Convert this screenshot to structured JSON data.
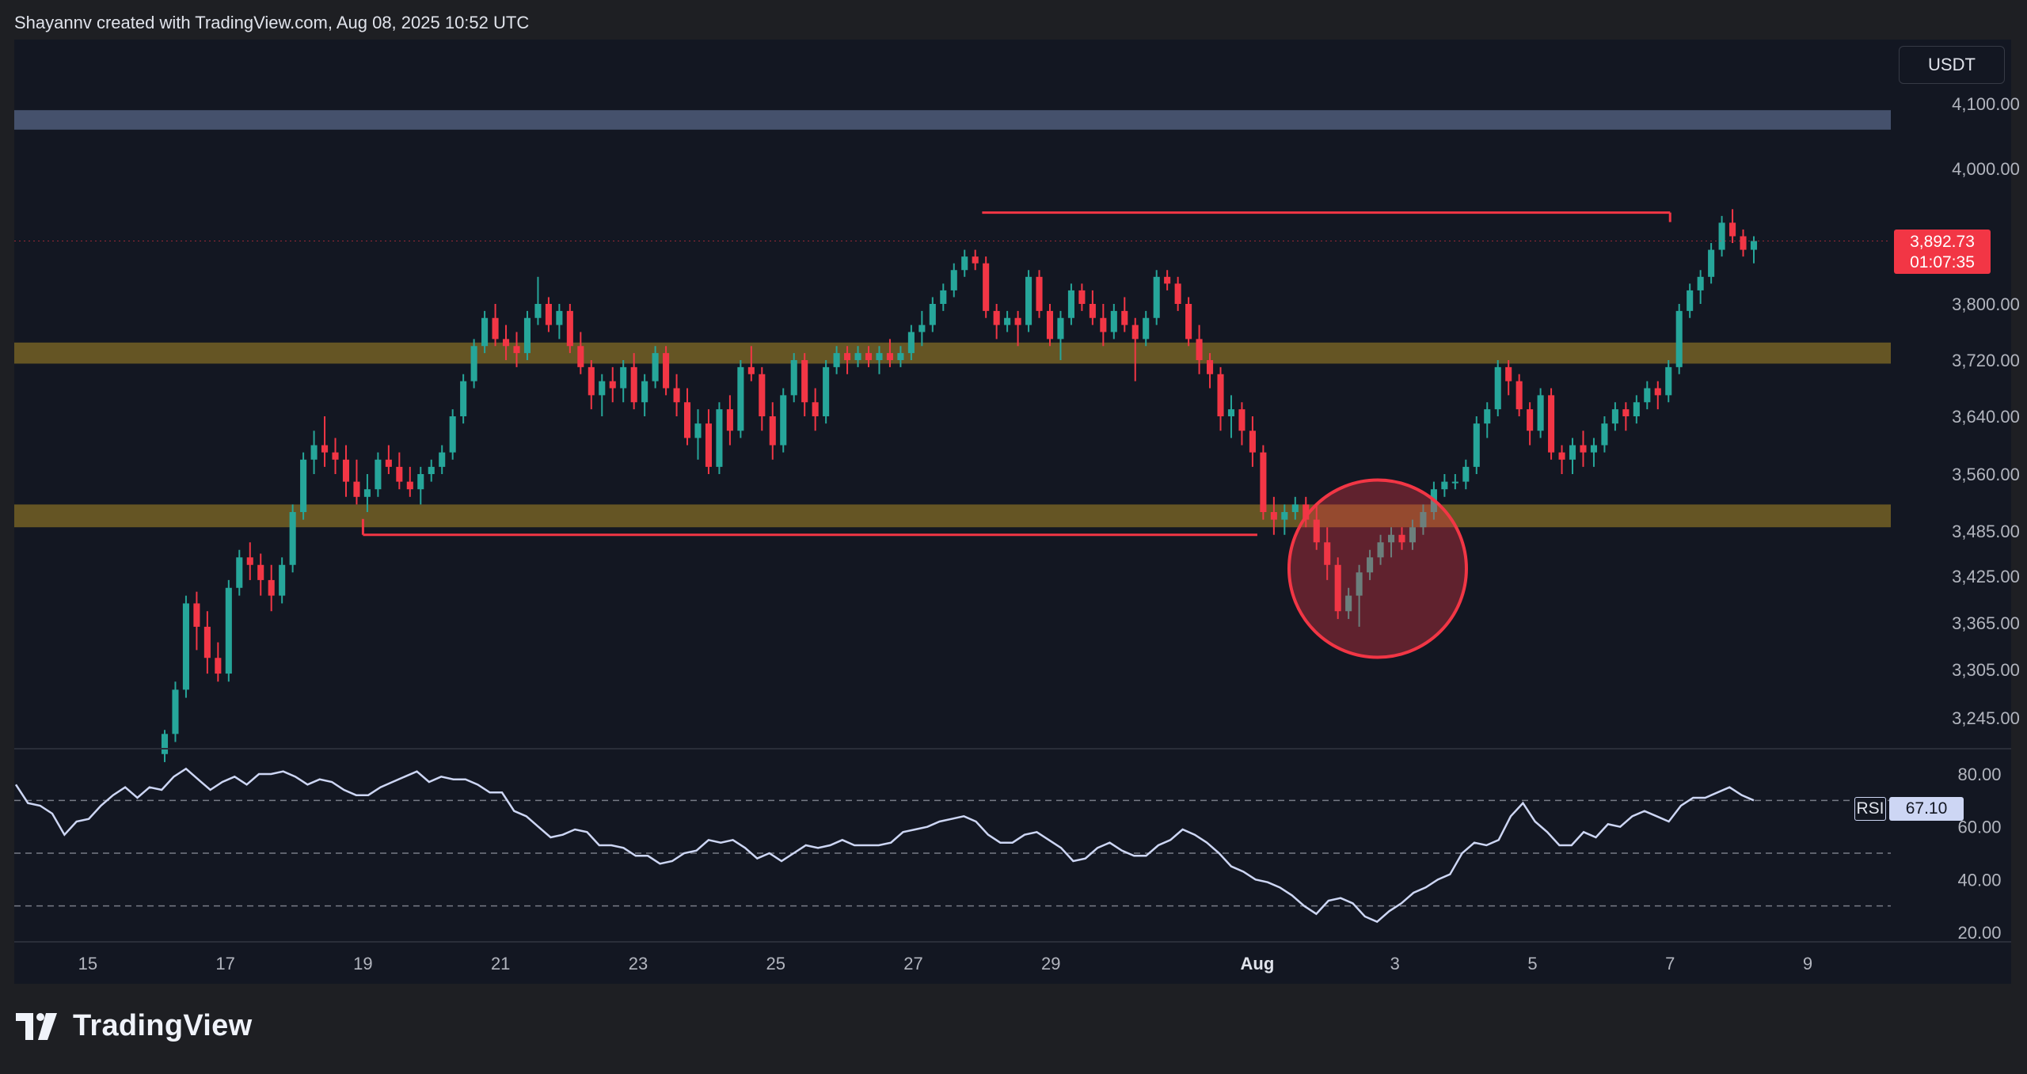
{
  "header": {
    "attribution": "Shayannv created with TradingView.com, Aug 08, 2025 10:52 UTC"
  },
  "footer": {
    "brand": "TradingView",
    "logo_icon": "tradingview-logo-icon"
  },
  "currency_label": "USDT",
  "last_price": {
    "price": "3,892.73",
    "countdown": "01:07:35"
  },
  "rsi": {
    "label": "RSI",
    "value": "67.10"
  },
  "colors": {
    "background": "#131722",
    "bull": "#26a69a",
    "bear": "#f23645",
    "zone": "#c9a227",
    "top_zone": "#5b6b8c",
    "rsi_line": "#cdd6f4"
  },
  "chart_data": [
    {
      "type": "candlestick",
      "title": "",
      "y_axis_ticks": [
        "4,100.00",
        "4,000.00",
        "3,800.00",
        "3,720.00",
        "3,640.00",
        "3,560.00",
        "3,485.00",
        "3,425.00",
        "3,365.00",
        "3,305.00",
        "3,245.00"
      ],
      "x_axis_ticks": [
        "15",
        "17",
        "19",
        "21",
        "23",
        "25",
        "27",
        "29",
        "Aug",
        "3",
        "5",
        "7",
        "9"
      ],
      "x_range": [
        "2025-07-14",
        "2025-08-09"
      ],
      "candles_ohlc": [
        [
          3200,
          3230,
          3190,
          3225
        ],
        [
          3225,
          3290,
          3215,
          3280
        ],
        [
          3280,
          3400,
          3270,
          3390
        ],
        [
          3390,
          3405,
          3330,
          3360
        ],
        [
          3360,
          3380,
          3300,
          3320
        ],
        [
          3320,
          3340,
          3290,
          3300
        ],
        [
          3300,
          3420,
          3290,
          3410
        ],
        [
          3410,
          3460,
          3400,
          3450
        ],
        [
          3450,
          3470,
          3420,
          3440
        ],
        [
          3440,
          3455,
          3400,
          3420
        ],
        [
          3420,
          3440,
          3380,
          3400
        ],
        [
          3400,
          3450,
          3390,
          3440
        ],
        [
          3440,
          3520,
          3430,
          3510
        ],
        [
          3510,
          3590,
          3500,
          3580
        ],
        [
          3580,
          3620,
          3560,
          3600
        ],
        [
          3600,
          3640,
          3570,
          3590
        ],
        [
          3590,
          3610,
          3560,
          3580
        ],
        [
          3580,
          3600,
          3530,
          3550
        ],
        [
          3550,
          3580,
          3520,
          3530
        ],
        [
          3530,
          3560,
          3510,
          3540
        ],
        [
          3540,
          3590,
          3530,
          3580
        ],
        [
          3580,
          3600,
          3560,
          3570
        ],
        [
          3570,
          3590,
          3540,
          3550
        ],
        [
          3550,
          3570,
          3530,
          3540
        ],
        [
          3540,
          3570,
          3520,
          3560
        ],
        [
          3560,
          3580,
          3550,
          3570
        ],
        [
          3570,
          3600,
          3560,
          3590
        ],
        [
          3590,
          3650,
          3580,
          3640
        ],
        [
          3640,
          3700,
          3630,
          3690
        ],
        [
          3690,
          3750,
          3680,
          3740
        ],
        [
          3740,
          3790,
          3730,
          3780
        ],
        [
          3780,
          3800,
          3740,
          3750
        ],
        [
          3750,
          3770,
          3720,
          3740
        ],
        [
          3740,
          3760,
          3710,
          3730
        ],
        [
          3730,
          3790,
          3720,
          3780
        ],
        [
          3780,
          3840,
          3770,
          3800
        ],
        [
          3800,
          3810,
          3760,
          3770
        ],
        [
          3770,
          3800,
          3750,
          3790
        ],
        [
          3790,
          3800,
          3730,
          3740
        ],
        [
          3740,
          3760,
          3700,
          3710
        ],
        [
          3710,
          3720,
          3650,
          3670
        ],
        [
          3670,
          3700,
          3640,
          3690
        ],
        [
          3690,
          3710,
          3660,
          3680
        ],
        [
          3680,
          3720,
          3660,
          3710
        ],
        [
          3710,
          3730,
          3650,
          3660
        ],
        [
          3660,
          3700,
          3640,
          3690
        ],
        [
          3690,
          3740,
          3680,
          3730
        ],
        [
          3730,
          3740,
          3670,
          3680
        ],
        [
          3680,
          3700,
          3640,
          3660
        ],
        [
          3660,
          3680,
          3600,
          3610
        ],
        [
          3610,
          3650,
          3580,
          3630
        ],
        [
          3630,
          3650,
          3560,
          3570
        ],
        [
          3570,
          3660,
          3560,
          3650
        ],
        [
          3650,
          3670,
          3600,
          3620
        ],
        [
          3620,
          3720,
          3610,
          3710
        ],
        [
          3710,
          3740,
          3690,
          3700
        ],
        [
          3700,
          3710,
          3620,
          3640
        ],
        [
          3640,
          3660,
          3580,
          3600
        ],
        [
          3600,
          3680,
          3590,
          3670
        ],
        [
          3670,
          3730,
          3660,
          3720
        ],
        [
          3720,
          3730,
          3640,
          3660
        ],
        [
          3660,
          3680,
          3620,
          3640
        ],
        [
          3640,
          3720,
          3630,
          3710
        ],
        [
          3710,
          3740,
          3700,
          3730
        ],
        [
          3730,
          3740,
          3700,
          3720
        ],
        [
          3720,
          3740,
          3710,
          3730
        ],
        [
          3730,
          3740,
          3710,
          3720
        ],
        [
          3720,
          3740,
          3700,
          3730
        ],
        [
          3730,
          3750,
          3710,
          3720
        ],
        [
          3720,
          3740,
          3710,
          3730
        ],
        [
          3730,
          3770,
          3720,
          3760
        ],
        [
          3760,
          3790,
          3740,
          3770
        ],
        [
          3770,
          3810,
          3760,
          3800
        ],
        [
          3800,
          3830,
          3790,
          3820
        ],
        [
          3820,
          3860,
          3810,
          3850
        ],
        [
          3850,
          3880,
          3840,
          3870
        ],
        [
          3870,
          3880,
          3850,
          3860
        ],
        [
          3860,
          3870,
          3780,
          3790
        ],
        [
          3790,
          3800,
          3750,
          3770
        ],
        [
          3770,
          3790,
          3760,
          3780
        ],
        [
          3780,
          3790,
          3740,
          3770
        ],
        [
          3770,
          3850,
          3760,
          3840
        ],
        [
          3840,
          3850,
          3780,
          3790
        ],
        [
          3790,
          3800,
          3740,
          3750
        ],
        [
          3750,
          3790,
          3720,
          3780
        ],
        [
          3780,
          3830,
          3770,
          3820
        ],
        [
          3820,
          3830,
          3790,
          3800
        ],
        [
          3800,
          3820,
          3770,
          3780
        ],
        [
          3780,
          3800,
          3740,
          3760
        ],
        [
          3760,
          3800,
          3750,
          3790
        ],
        [
          3790,
          3810,
          3760,
          3770
        ],
        [
          3770,
          3780,
          3690,
          3750
        ],
        [
          3750,
          3790,
          3740,
          3780
        ],
        [
          3780,
          3850,
          3770,
          3840
        ],
        [
          3840,
          3850,
          3820,
          3830
        ],
        [
          3830,
          3840,
          3790,
          3800
        ],
        [
          3800,
          3810,
          3740,
          3750
        ],
        [
          3750,
          3770,
          3700,
          3720
        ],
        [
          3720,
          3730,
          3680,
          3700
        ],
        [
          3700,
          3710,
          3620,
          3640
        ],
        [
          3640,
          3670,
          3610,
          3650
        ],
        [
          3650,
          3660,
          3600,
          3620
        ],
        [
          3620,
          3640,
          3570,
          3590
        ],
        [
          3590,
          3600,
          3500,
          3510
        ],
        [
          3510,
          3530,
          3480,
          3500
        ],
        [
          3500,
          3520,
          3480,
          3510
        ],
        [
          3510,
          3530,
          3500,
          3520
        ],
        [
          3520,
          3530,
          3490,
          3500
        ],
        [
          3500,
          3520,
          3460,
          3470
        ],
        [
          3470,
          3490,
          3420,
          3440
        ],
        [
          3440,
          3450,
          3370,
          3380
        ],
        [
          3380,
          3410,
          3370,
          3400
        ],
        [
          3400,
          3440,
          3360,
          3430
        ],
        [
          3430,
          3460,
          3420,
          3450
        ],
        [
          3450,
          3480,
          3440,
          3470
        ],
        [
          3470,
          3490,
          3450,
          3480
        ],
        [
          3480,
          3490,
          3460,
          3470
        ],
        [
          3470,
          3500,
          3460,
          3490
        ],
        [
          3490,
          3520,
          3480,
          3510
        ],
        [
          3510,
          3550,
          3500,
          3540
        ],
        [
          3540,
          3560,
          3530,
          3550
        ],
        [
          3550,
          3560,
          3540,
          3550
        ],
        [
          3550,
          3580,
          3540,
          3570
        ],
        [
          3570,
          3640,
          3560,
          3630
        ],
        [
          3630,
          3660,
          3610,
          3650
        ],
        [
          3650,
          3720,
          3640,
          3710
        ],
        [
          3710,
          3720,
          3670,
          3690
        ],
        [
          3690,
          3700,
          3640,
          3650
        ],
        [
          3650,
          3660,
          3600,
          3620
        ],
        [
          3620,
          3680,
          3610,
          3670
        ],
        [
          3670,
          3680,
          3580,
          3590
        ],
        [
          3590,
          3600,
          3560,
          3580
        ],
        [
          3580,
          3610,
          3560,
          3600
        ],
        [
          3600,
          3620,
          3570,
          3590
        ],
        [
          3590,
          3610,
          3570,
          3600
        ],
        [
          3600,
          3640,
          3590,
          3630
        ],
        [
          3630,
          3660,
          3620,
          3650
        ],
        [
          3650,
          3660,
          3620,
          3640
        ],
        [
          3640,
          3670,
          3630,
          3660
        ],
        [
          3660,
          3690,
          3650,
          3680
        ],
        [
          3680,
          3690,
          3650,
          3670
        ],
        [
          3670,
          3720,
          3660,
          3710
        ],
        [
          3710,
          3800,
          3700,
          3790
        ],
        [
          3790,
          3830,
          3780,
          3820
        ],
        [
          3820,
          3850,
          3800,
          3840
        ],
        [
          3840,
          3890,
          3830,
          3880
        ],
        [
          3880,
          3930,
          3870,
          3920
        ],
        [
          3920,
          3940,
          3890,
          3900
        ],
        [
          3900,
          3910,
          3870,
          3880
        ],
        [
          3880,
          3900,
          3860,
          3893
        ]
      ],
      "horizontal_levels": [
        {
          "price": 3935,
          "from": "2025-07-28",
          "to": "2025-08-07"
        },
        {
          "price": 3480,
          "from": "2025-07-19",
          "to": "2025-08-01"
        }
      ],
      "zones": [
        {
          "low": 4060,
          "high": 4090
        },
        {
          "low": 3715,
          "high": 3745
        },
        {
          "low": 3490,
          "high": 3520
        }
      ],
      "highlight_circle": {
        "center_date": "2025-08-02T18:00",
        "center_price": 3435
      }
    },
    {
      "type": "line",
      "title": "",
      "series": [
        {
          "name": "RSI",
          "values": [
            76,
            69,
            68,
            65,
            57,
            62,
            63,
            68,
            72,
            75,
            71,
            75,
            74,
            79,
            82,
            78,
            74,
            77,
            79,
            76,
            80,
            80,
            81,
            79,
            76,
            78,
            77,
            74,
            72,
            72,
            75,
            77,
            79,
            81,
            77,
            79,
            78,
            78,
            76,
            73,
            73,
            66,
            64,
            60,
            56,
            57,
            59,
            58,
            53,
            53,
            52,
            49,
            49,
            46,
            47,
            50,
            51,
            55,
            54,
            55,
            52,
            48,
            50,
            47,
            50,
            53,
            52,
            53,
            55,
            53,
            53,
            53,
            54,
            58,
            59,
            60,
            62,
            63,
            64,
            62,
            57,
            54,
            54,
            57,
            58,
            55,
            52,
            47,
            48,
            52,
            54,
            51,
            49,
            49,
            53,
            55,
            59,
            57,
            54,
            50,
            45,
            43,
            40,
            39,
            37,
            34,
            30,
            27,
            32,
            33,
            31,
            26,
            24,
            28,
            31,
            35,
            37,
            40,
            42,
            50,
            54,
            53,
            55,
            64,
            69,
            62,
            58,
            53,
            53,
            58,
            56,
            61,
            60,
            64,
            66,
            64,
            62,
            68,
            71,
            71,
            73,
            75,
            72,
            70
          ]
        }
      ],
      "y_axis_ticks": [
        "80.00",
        "60.00",
        "40.00",
        "20.00"
      ],
      "reference_lines": [
        70,
        50,
        30
      ]
    }
  ]
}
